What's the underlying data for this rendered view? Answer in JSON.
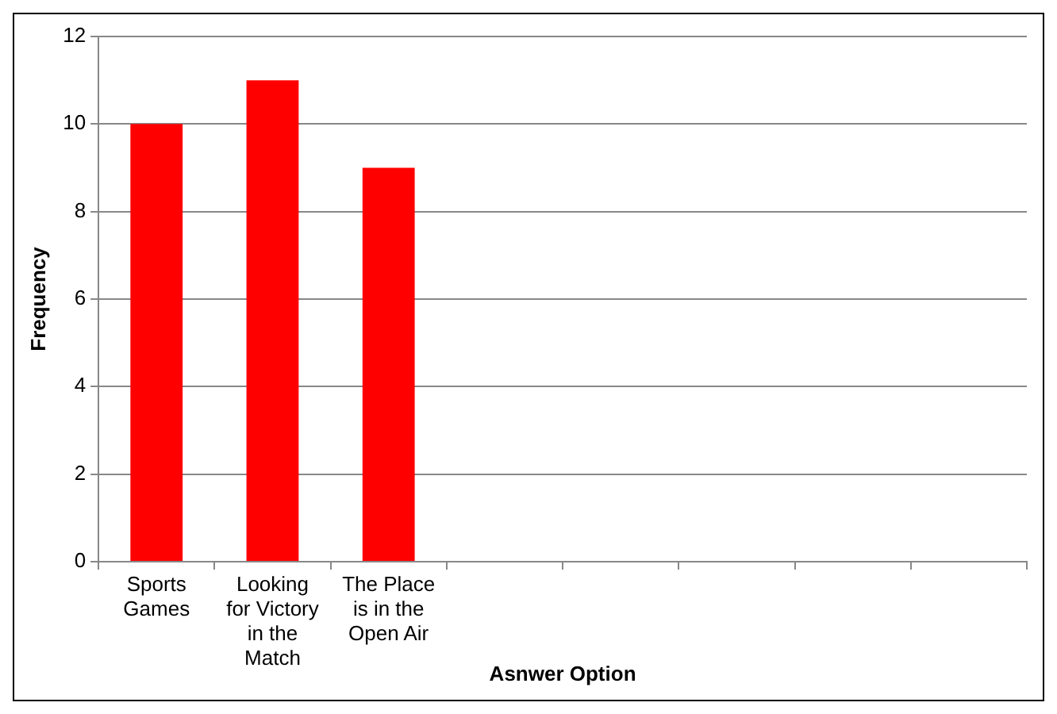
{
  "chart_data": {
    "type": "bar",
    "xlabel": "Asnwer Option",
    "ylabel": "Frequency",
    "categories": [
      "Sports Games",
      "Looking for Victory in the Match",
      "The Place is in the Open Air",
      null,
      null,
      null,
      null,
      null
    ],
    "values": [
      10,
      11,
      9,
      null,
      null,
      null,
      null,
      null
    ],
    "color": "#ff0000",
    "ylim": [
      0,
      12
    ],
    "yticks": [
      0,
      2,
      4,
      6,
      8,
      10,
      12
    ],
    "grid": "y",
    "legend": false
  }
}
